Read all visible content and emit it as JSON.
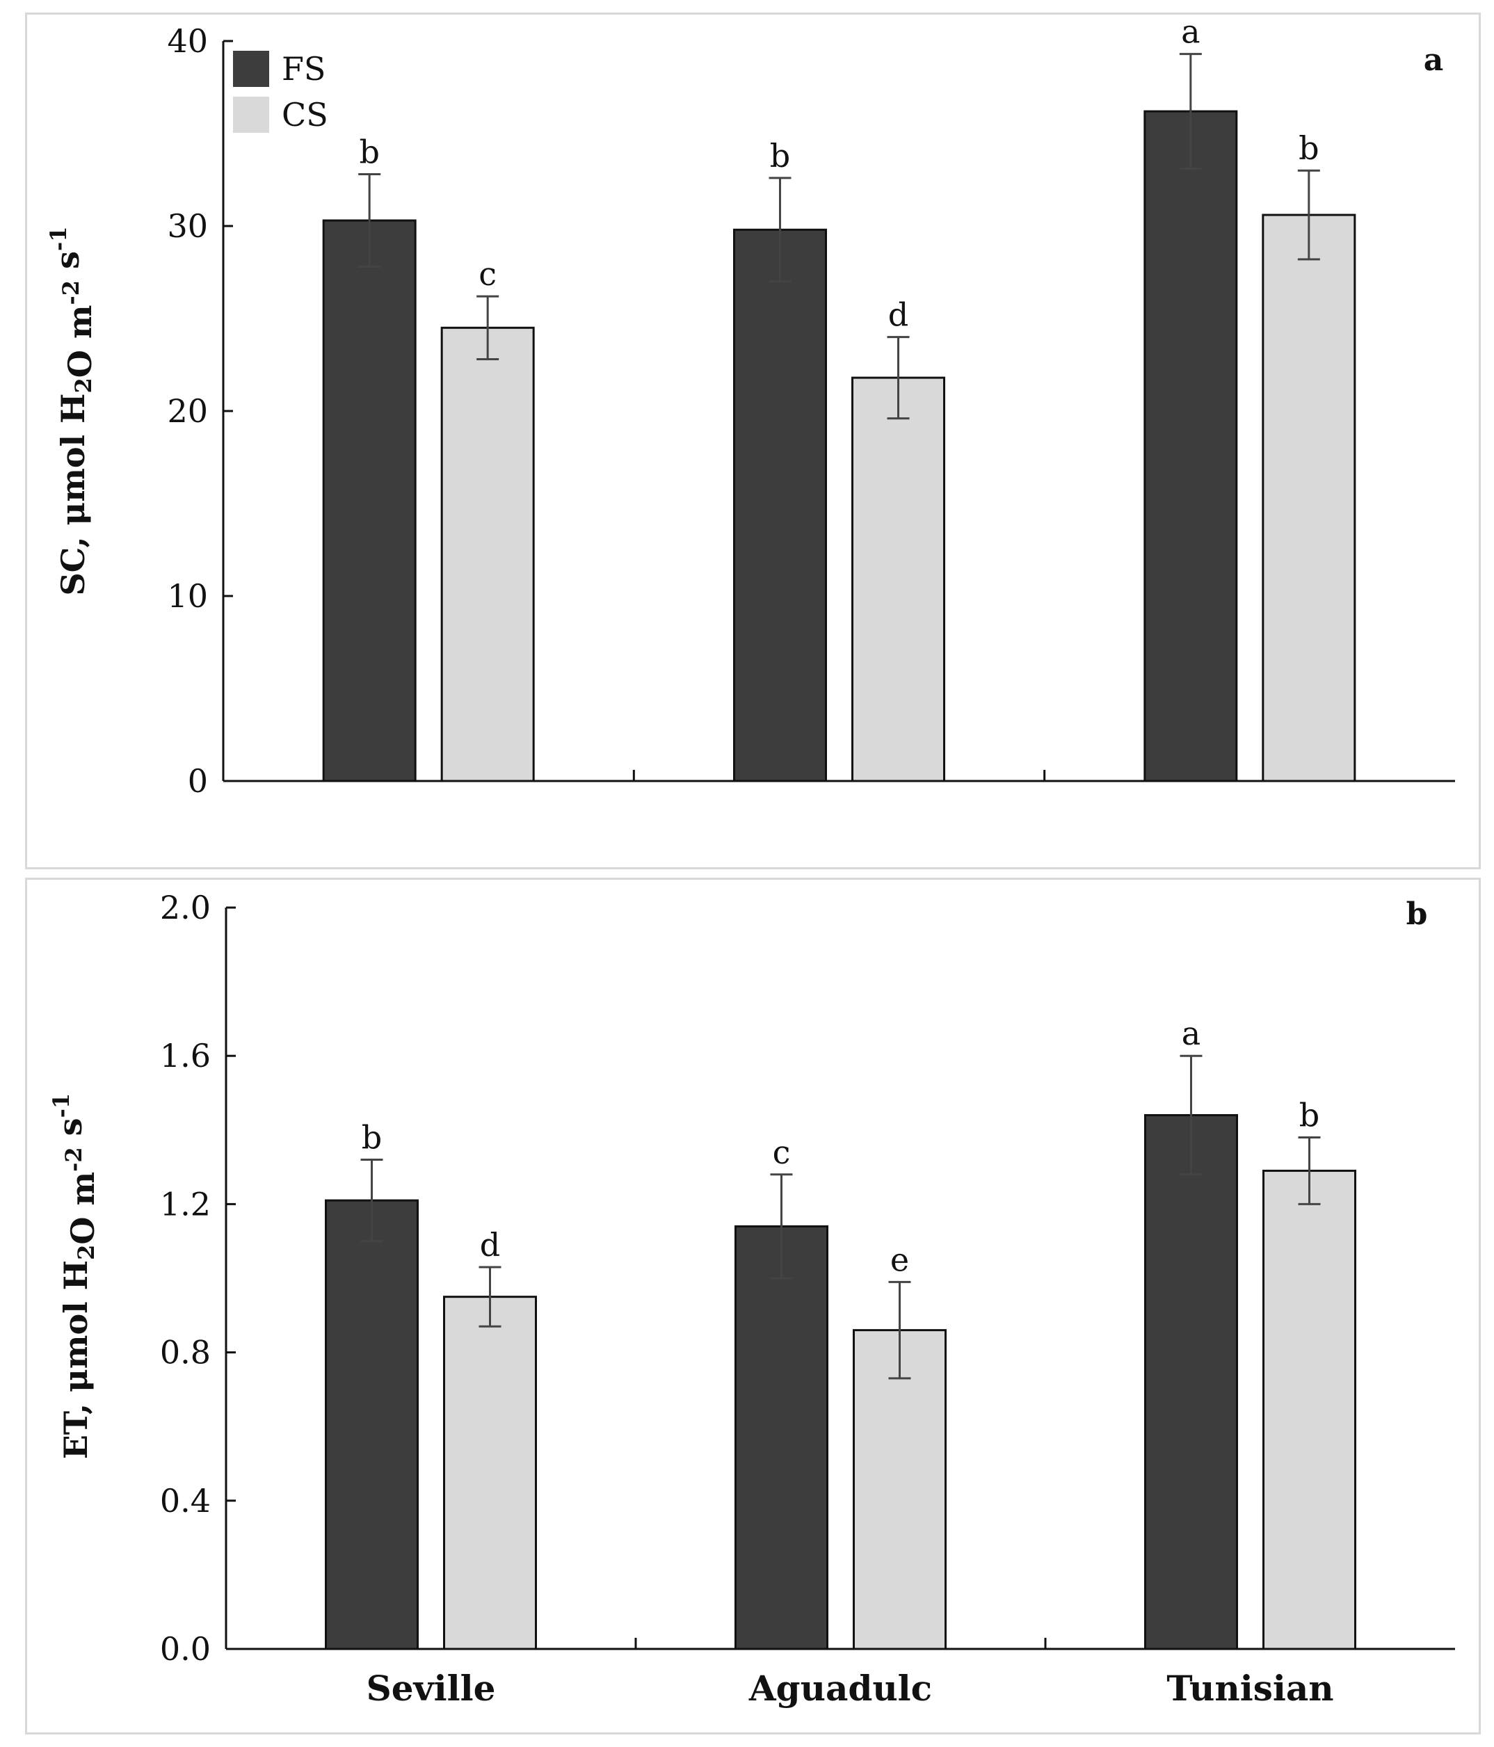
{
  "chart_data": [
    {
      "type": "bar",
      "panel_label": "a",
      "categories": [
        "Seville",
        "Aguadulc",
        "Tunisian"
      ],
      "series": [
        {
          "name": "FS",
          "color": "#3d3d3d",
          "values": [
            30.3,
            29.8,
            36.2
          ],
          "errors": [
            2.5,
            2.8,
            3.1
          ],
          "letters": [
            "b",
            "b",
            "a"
          ]
        },
        {
          "name": "CS",
          "color": "#d9d9d9",
          "values": [
            24.5,
            21.8,
            30.6
          ],
          "errors": [
            1.7,
            2.2,
            2.4
          ],
          "letters": [
            "c",
            "d",
            "b"
          ]
        }
      ],
      "ylabel": {
        "prefix": "SC, μmol H",
        "sub": "2",
        "mid": "O m",
        "sup1": "-2",
        "mid2": " s",
        "sup2": "-1"
      },
      "ylim": [
        0,
        40
      ],
      "yticks": [
        "0",
        "10",
        "20",
        "30",
        "40"
      ],
      "legend": {
        "position": "top-left",
        "entries": [
          "FS",
          "CS"
        ]
      }
    },
    {
      "type": "bar",
      "panel_label": "b",
      "categories": [
        "Seville",
        "Aguadulc",
        "Tunisian"
      ],
      "series": [
        {
          "name": "FS",
          "color": "#3d3d3d",
          "values": [
            1.21,
            1.14,
            1.44
          ],
          "errors": [
            0.11,
            0.14,
            0.16
          ],
          "letters": [
            "b",
            "c",
            "a"
          ]
        },
        {
          "name": "CS",
          "color": "#d9d9d9",
          "values": [
            0.95,
            0.86,
            1.29
          ],
          "errors": [
            0.08,
            0.13,
            0.09
          ],
          "letters": [
            "d",
            "e",
            "b"
          ]
        }
      ],
      "ylabel": {
        "prefix": "ET, μmol H",
        "sub": "2",
        "mid": "O m",
        "sup1": "-2",
        "mid2": " s",
        "sup2": "-1"
      },
      "ylim": [
        0,
        2.0
      ],
      "yticks": [
        "0.0",
        "0.4",
        "0.8",
        "1.2",
        "1.6",
        "2.0"
      ]
    }
  ]
}
